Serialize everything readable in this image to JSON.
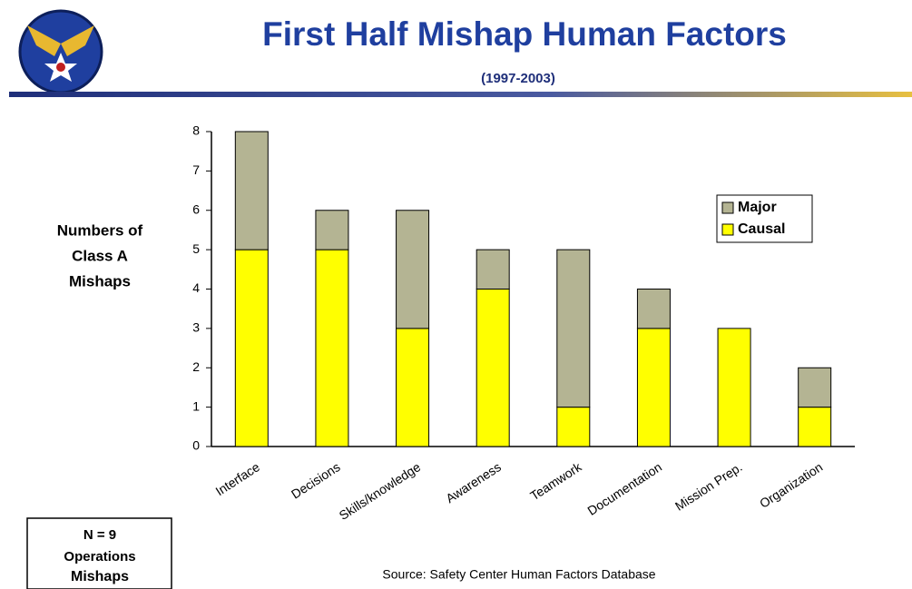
{
  "chart_data": {
    "type": "stacked_bar",
    "title": "First Half Mishap Human Factors",
    "subtitle": "(1997-2003)",
    "y_label": [
      "Numbers of",
      "Class A",
      "Mishaps"
    ],
    "categories": [
      "Interface",
      "Decisions",
      "Skills/knowledge",
      "Awareness",
      "Teamwork",
      "Documentation",
      "Mission Prep.",
      "Organization"
    ],
    "series": [
      {
        "name": "Causal",
        "color": "#ffff00",
        "values": [
          5,
          5,
          3,
          4,
          1,
          3,
          3,
          1
        ]
      },
      {
        "name": "Major",
        "color": "#b4b493",
        "values": [
          3,
          1,
          3,
          1,
          4,
          1,
          0,
          1
        ]
      }
    ],
    "ylim": [
      0,
      8
    ],
    "yticks": [
      0,
      1,
      2,
      3,
      4,
      5,
      6,
      7,
      8
    ],
    "legend": "upper right",
    "note": [
      "N = 9",
      "Operations",
      "Mishaps"
    ],
    "source": "Source: Safety Center Human Factors Database"
  }
}
